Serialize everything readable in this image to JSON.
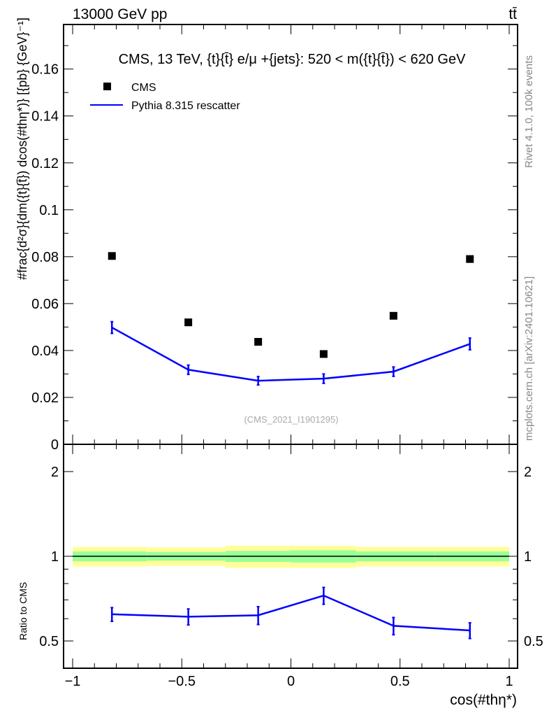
{
  "header": {
    "left": "13000 GeV pp",
    "right": "tt̄"
  },
  "side": {
    "rivet": "Rivet 4.1.0,  100k events",
    "mcplots": "mcplots.cern.ch [arXiv:2401.10621]"
  },
  "watermark": "(CMS_2021_I1901295)",
  "chart_data": [
    {
      "type": "scatter",
      "title": "CMS, 13 TeV, {t}{t̄} e/μ +{jets}: 520 < m({t}{t̄}) < 620 GeV",
      "ylabel": "#frac{d²σ}{dm({t}{t̄}) dcos(#thη*)} [{pb} {GeV}⁻¹]",
      "xlim": [
        -1,
        1
      ],
      "ylim": [
        0,
        0.179
      ],
      "yticks": [
        0,
        0.02,
        0.04,
        0.06,
        0.08,
        0.1,
        0.12,
        0.14,
        0.16
      ],
      "ytick_labels": [
        "0",
        "0.02",
        "0.04",
        "0.06",
        "0.08",
        "0.1",
        "0.12",
        "0.14",
        "0.16"
      ],
      "legend_position": "top-left",
      "x": [
        -0.82,
        -0.47,
        -0.15,
        0.15,
        0.47,
        0.82
      ],
      "series": [
        {
          "name": "CMS",
          "kind": "markers",
          "color": "#000000",
          "values": [
            0.0803,
            0.052,
            0.0437,
            0.0385,
            0.0548,
            0.079
          ]
        },
        {
          "name": "Pythia 8.315 rescatter",
          "kind": "line",
          "color": "#0000ff",
          "values": [
            0.0498,
            0.0318,
            0.0271,
            0.028,
            0.031,
            0.0428
          ],
          "errors": [
            0.0025,
            0.002,
            0.0018,
            0.002,
            0.002,
            0.0025
          ]
        }
      ]
    },
    {
      "type": "line",
      "ylabel": "Ratio to CMS",
      "xlabel": "cos(#thη*)",
      "yscale": "log",
      "ylim": [
        0.4,
        2.5
      ],
      "yticks": [
        0.5,
        1,
        2
      ],
      "ytick_labels": [
        "0.5",
        "1",
        "2"
      ],
      "xticks": [
        -1,
        -0.5,
        0,
        0.5,
        1
      ],
      "xtick_labels": [
        "−1",
        "−0.5",
        "0",
        "0.5",
        "1"
      ],
      "bin_edges": [
        -1,
        -0.66,
        -0.3,
        0,
        0.3,
        0.66,
        1
      ],
      "band_yellow": [
        0.08,
        0.075,
        0.09,
        0.09,
        0.08,
        0.08
      ],
      "band_green": [
        0.04,
        0.035,
        0.045,
        0.05,
        0.04,
        0.04
      ],
      "x": [
        -0.82,
        -0.47,
        -0.15,
        0.15,
        0.47,
        0.82
      ],
      "series": [
        {
          "name": "Pythia 8.315 rescatter",
          "color": "#0000ff",
          "values": [
            0.622,
            0.61,
            0.617,
            0.725,
            0.566,
            0.545
          ],
          "errors": [
            0.035,
            0.04,
            0.045,
            0.05,
            0.04,
            0.035
          ]
        }
      ],
      "band_colors": {
        "yellow": "#ffff99",
        "green": "#99ff99"
      }
    }
  ]
}
